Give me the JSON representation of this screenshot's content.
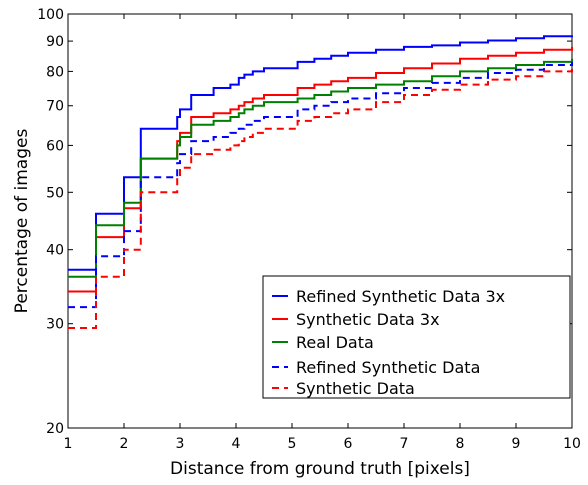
{
  "chart_data": {
    "type": "line",
    "xlabel": "Distance from ground truth [pixels]",
    "ylabel": "Percentage of images",
    "xlim": [
      1,
      10
    ],
    "ylim": [
      20,
      100
    ],
    "y_scale": "log",
    "grid": false,
    "legend_position": "lower-right",
    "x_ticks": [
      "1",
      "2",
      "3",
      "4",
      "5",
      "6",
      "7",
      "8",
      "9",
      "10"
    ],
    "y_ticks": [
      {
        "value": 20,
        "label": "20"
      },
      {
        "value": 30,
        "label": "30"
      },
      {
        "value": 40,
        "label": "40"
      },
      {
        "value": 50,
        "label": "50"
      },
      {
        "value": 60,
        "label": "60"
      },
      {
        "value": 70,
        "label": "70"
      },
      {
        "value": 80,
        "label": "80"
      },
      {
        "value": 90,
        "label": "90"
      },
      {
        "value": 100,
        "label": "100"
      }
    ],
    "series": [
      {
        "name": "Refined Synthetic Data 3x",
        "color": "#0000ff",
        "style": "solid",
        "x": [
          1.0,
          1.45,
          1.5,
          1.9,
          2.0,
          2.2,
          2.3,
          2.7,
          2.95,
          3.0,
          3.05,
          3.2,
          3.55,
          3.6,
          3.8,
          3.9,
          4.05,
          4.15,
          4.3,
          4.5,
          4.9,
          5.1,
          5.4,
          5.7,
          6.0,
          6.5,
          7.0,
          7.5,
          8.0,
          8.5,
          9.0,
          9.5,
          10.0
        ],
        "values": [
          37,
          37,
          46,
          46,
          53,
          53,
          64,
          64,
          67,
          69,
          69,
          73,
          73,
          75,
          75,
          76,
          78,
          79,
          80,
          81,
          81,
          83,
          84,
          85,
          86,
          87,
          88,
          88.5,
          89.5,
          90.2,
          91,
          91.7,
          92
        ]
      },
      {
        "name": "Synthetic Data 3x",
        "color": "#ff0000",
        "style": "solid",
        "x": [
          1.0,
          1.45,
          1.5,
          1.9,
          2.0,
          2.2,
          2.3,
          2.7,
          2.95,
          3.0,
          3.05,
          3.2,
          3.55,
          3.6,
          3.8,
          3.9,
          4.05,
          4.15,
          4.3,
          4.5,
          4.9,
          5.1,
          5.4,
          5.7,
          6.0,
          6.5,
          7.0,
          7.5,
          8.0,
          8.5,
          9.0,
          9.5,
          10.0
        ],
        "values": [
          34,
          34,
          42,
          42,
          47,
          47,
          57,
          57,
          61,
          63,
          63,
          67,
          67,
          68,
          68,
          69,
          70,
          71,
          72,
          73,
          73,
          75,
          76,
          77,
          78,
          79.5,
          81,
          82.5,
          84,
          85,
          86,
          87,
          88
        ]
      },
      {
        "name": "Real Data",
        "color": "#008000",
        "style": "solid",
        "x": [
          1.0,
          1.45,
          1.5,
          1.9,
          2.0,
          2.2,
          2.3,
          2.7,
          2.95,
          3.0,
          3.05,
          3.2,
          3.55,
          3.6,
          3.8,
          3.9,
          4.05,
          4.15,
          4.3,
          4.5,
          4.9,
          5.1,
          5.4,
          5.7,
          6.0,
          6.5,
          7.0,
          7.5,
          8.0,
          8.5,
          9.0,
          9.5,
          10.0
        ],
        "values": [
          36,
          36,
          44,
          44,
          48,
          48,
          57,
          57,
          60,
          62,
          62,
          65,
          65,
          66,
          66,
          67,
          68,
          69,
          70,
          71,
          71,
          72,
          73,
          74,
          75,
          76,
          77,
          78.5,
          80,
          81,
          82,
          83,
          84
        ]
      },
      {
        "name": "Refined Synthetic Data",
        "color": "#0000ff",
        "style": "dashed",
        "x": [
          1.0,
          1.45,
          1.5,
          1.9,
          2.0,
          2.2,
          2.3,
          2.7,
          2.95,
          3.0,
          3.05,
          3.2,
          3.55,
          3.6,
          3.8,
          3.9,
          4.05,
          4.15,
          4.3,
          4.5,
          4.9,
          5.1,
          5.4,
          5.7,
          6.0,
          6.5,
          7.0,
          7.5,
          8.0,
          8.5,
          9.0,
          9.5,
          10.0
        ],
        "values": [
          32,
          32,
          39,
          39,
          43,
          43,
          53,
          53,
          56,
          58,
          58,
          61,
          61,
          62,
          62,
          63,
          64,
          65,
          66,
          67,
          67,
          69,
          70,
          71,
          72,
          73.5,
          75,
          76.5,
          78,
          79.5,
          80.5,
          82,
          83
        ]
      },
      {
        "name": "Synthetic Data",
        "color": "#ff0000",
        "style": "dashed",
        "x": [
          1.0,
          1.45,
          1.5,
          1.9,
          2.0,
          2.2,
          2.3,
          2.7,
          2.95,
          3.0,
          3.05,
          3.2,
          3.55,
          3.6,
          3.8,
          3.9,
          4.05,
          4.15,
          4.3,
          4.5,
          4.9,
          5.1,
          5.4,
          5.7,
          6.0,
          6.5,
          7.0,
          7.5,
          8.0,
          8.5,
          9.0,
          9.5,
          10.0
        ],
        "values": [
          29.5,
          29.5,
          36,
          36,
          40,
          40,
          50,
          50,
          53,
          55,
          55,
          58,
          58,
          59,
          59,
          60,
          61,
          62,
          63,
          64,
          64,
          66,
          67,
          68,
          69,
          71,
          73,
          74.5,
          76,
          77.5,
          78.5,
          80,
          81
        ]
      }
    ]
  }
}
